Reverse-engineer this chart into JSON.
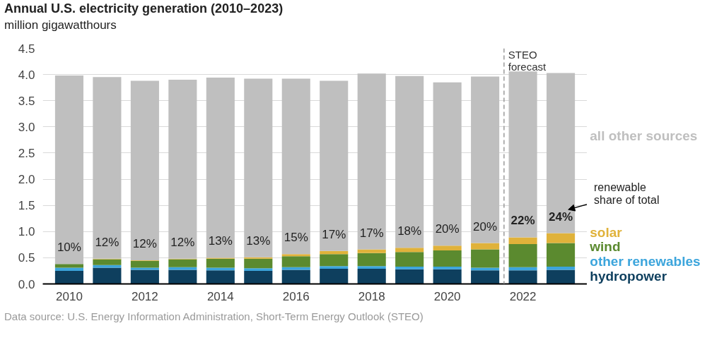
{
  "chart_data": {
    "type": "bar",
    "stacked": true,
    "title": "Annual U.S. electricity generation (2010–2023)",
    "subtitle": "million gigawatthours",
    "x": [
      2010,
      2011,
      2012,
      2013,
      2014,
      2015,
      2016,
      2017,
      2018,
      2019,
      2020,
      2021,
      2022,
      2023
    ],
    "series": [
      {
        "name": "hydropower",
        "color": "#0e3f5e",
        "values": [
          0.25,
          0.31,
          0.27,
          0.27,
          0.26,
          0.25,
          0.27,
          0.29,
          0.29,
          0.28,
          0.28,
          0.26,
          0.26,
          0.27
        ]
      },
      {
        "name": "other renewables",
        "color": "#3ca5dc",
        "values": [
          0.06,
          0.05,
          0.04,
          0.05,
          0.05,
          0.05,
          0.05,
          0.05,
          0.05,
          0.05,
          0.05,
          0.05,
          0.06,
          0.06
        ]
      },
      {
        "name": "wind",
        "color": "#5b8a2f",
        "values": [
          0.07,
          0.11,
          0.13,
          0.15,
          0.17,
          0.18,
          0.21,
          0.23,
          0.25,
          0.28,
          0.31,
          0.35,
          0.44,
          0.45
        ]
      },
      {
        "name": "solar",
        "color": "#e0b23a",
        "values": [
          0.0,
          0.01,
          0.01,
          0.01,
          0.02,
          0.03,
          0.04,
          0.06,
          0.07,
          0.08,
          0.09,
          0.12,
          0.13,
          0.19
        ]
      },
      {
        "name": "all other sources",
        "color": "#bfbfbf",
        "values": [
          3.6,
          3.47,
          3.43,
          3.42,
          3.44,
          3.41,
          3.35,
          3.25,
          3.36,
          3.28,
          3.12,
          3.18,
          3.17,
          3.06
        ]
      }
    ],
    "xlim": [
      2009.3,
      2023.7
    ],
    "xticks": [
      2010,
      2012,
      2014,
      2016,
      2018,
      2020,
      2022
    ],
    "ylim": [
      0,
      4.5
    ],
    "yticks": [
      {
        "value": 0,
        "label": "0.0"
      },
      0.5,
      {
        "value": 1,
        "label": "1.0"
      },
      1.5,
      {
        "value": 2,
        "label": "2.0"
      },
      2.5,
      {
        "value": 3,
        "label": "3.0"
      },
      3.5,
      {
        "value": 4,
        "label": "4.0"
      },
      4.5
    ],
    "grid": "y",
    "ref_lines": [
      {
        "axis": "x",
        "value": 2021.5,
        "label": "STEO forecast",
        "line_style": "dashed",
        "color": "#999999"
      }
    ],
    "annotations": [
      "10%",
      "12%",
      "12%",
      "12%",
      "13%",
      "13%",
      "15%",
      "17%",
      "17%",
      "18%",
      "20%",
      "20%",
      "22%",
      "24%",
      "renewable share of total",
      "Data source: U.S. Energy Information Administration, Short-Term Energy Outlook (STEO)"
    ]
  }
}
